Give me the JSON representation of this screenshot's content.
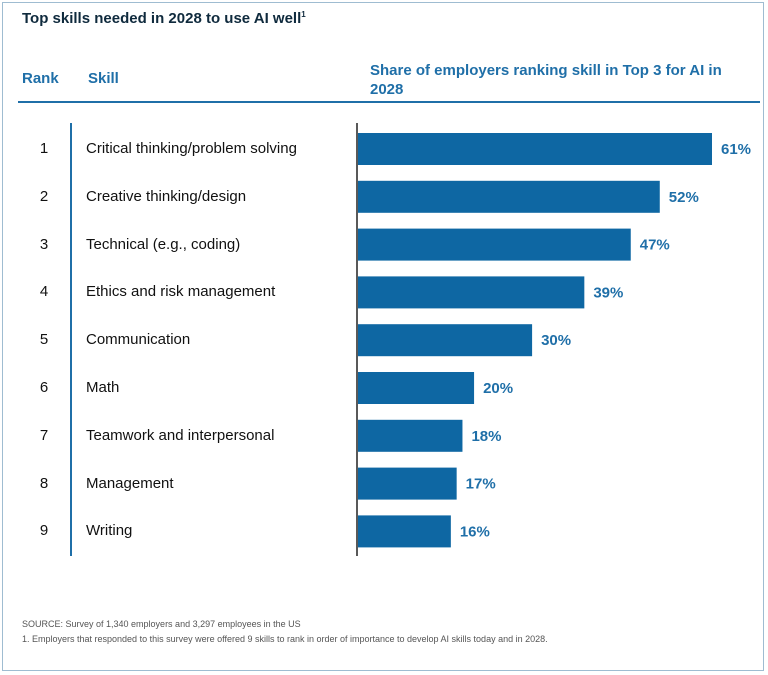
{
  "title": "Top skills needed in 2028 to use AI well",
  "title_superscript": "1",
  "header": {
    "rank": "Rank",
    "skill": "Skill",
    "share": "Share of employers ranking skill in Top 3 for AI in 2028"
  },
  "colors": {
    "bar": "#0e67a3",
    "accent": "#1f6fa8",
    "label": "#1f6fa8"
  },
  "chart_data": {
    "type": "bar",
    "orientation": "horizontal",
    "categories": [
      "Critical thinking/problem solving",
      "Creative thinking/design",
      "Technical (e.g., coding)",
      "Ethics and risk management",
      "Communication",
      "Math",
      "Teamwork and interpersonal",
      "Management",
      "Writing"
    ],
    "ranks": [
      "1",
      "2",
      "3",
      "4",
      "5",
      "6",
      "7",
      "8",
      "9"
    ],
    "values": [
      61,
      52,
      47,
      39,
      30,
      20,
      18,
      17,
      16
    ],
    "value_labels": [
      "61%",
      "52%",
      "47%",
      "39%",
      "30%",
      "20%",
      "18%",
      "17%",
      "16%"
    ],
    "unit": "%",
    "xlim": [
      0,
      61
    ],
    "grid": false
  },
  "footnotes": {
    "source": "SOURCE: Survey of 1,340 employers and 3,297 employees in the US",
    "note": "1. Employers that responded to this survey were offered 9 skills to rank in order of importance to develop AI skills today and in 2028."
  }
}
